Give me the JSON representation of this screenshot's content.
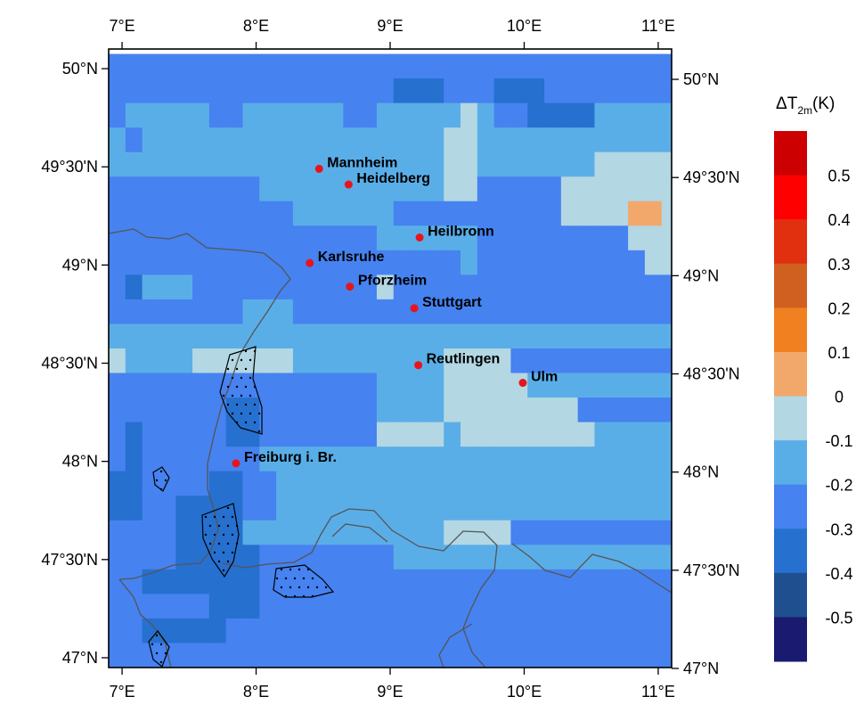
{
  "map": {
    "lon_range": [
      6.9,
      11.1
    ],
    "lat_range": [
      46.95,
      50.1
    ],
    "grid": {
      "lon_start": 6.9,
      "lat_start": 46.95,
      "cell_lon": 0.125,
      "cell_lat": 0.125,
      "cols": 34,
      "rows": 25
    },
    "bottom_ticks": [
      "7°E",
      "8°E",
      "9°E",
      "10°E",
      "11°E"
    ],
    "top_ticks": [
      "7°E",
      "8°E",
      "9°E",
      "10°E",
      "11°E"
    ],
    "bottom_tick_lons": [
      7,
      8,
      9,
      10,
      11
    ],
    "left_ticks": [
      "50°N",
      "49°30'N",
      "49°N",
      "48°30'N",
      "48°N",
      "47°30'N",
      "47°N"
    ],
    "right_ticks": [
      "50°N",
      "49°30'N",
      "49°N",
      "48°30'N",
      "48°N",
      "47°30'N",
      "47°N"
    ],
    "lat_tick_values": [
      50,
      49.5,
      49,
      48.5,
      48,
      47.5,
      47
    ],
    "cities": [
      {
        "name": "Mannheim",
        "lon": 8.47,
        "lat": 49.49
      },
      {
        "name": "Heidelberg",
        "lon": 8.69,
        "lat": 49.41
      },
      {
        "name": "Heilbronn",
        "lon": 9.22,
        "lat": 49.14
      },
      {
        "name": "Karlsruhe",
        "lon": 8.4,
        "lat": 49.01
      },
      {
        "name": "Pforzheim",
        "lon": 8.7,
        "lat": 48.89
      },
      {
        "name": "Stuttgart",
        "lon": 9.18,
        "lat": 48.78
      },
      {
        "name": "Reutlingen",
        "lon": 9.21,
        "lat": 48.49
      },
      {
        "name": "Ulm",
        "lon": 9.99,
        "lat": 48.4
      },
      {
        "name": "Freiburg i. Br.",
        "lon": 7.85,
        "lat": 47.99
      }
    ]
  },
  "colorbar": {
    "title_main": "ΔT",
    "title_sub": "2m",
    "title_unit": "(K)",
    "levels": [
      "0.5",
      "0.4",
      "0.3",
      "0.2",
      "0.1",
      "0",
      "-0.1",
      "-0.2",
      "-0.3",
      "-0.4",
      "-0.5"
    ],
    "colors": [
      "#cc0000",
      "#ff0000",
      "#e03010",
      "#d0601f",
      "#f08020",
      "#f2a86a",
      "#b3d7e3",
      "#5aaee8",
      "#4682f0",
      "#2670d0",
      "#1f4f8f",
      "#1a1a70"
    ]
  },
  "class_colors": {
    "A": "#f2a86a",
    "C": "#b3d7e3",
    "L": "#5aaee8",
    "M": "#4682f0",
    "D": "#2670d0",
    "V": "#1f4f8f"
  },
  "grid_rows": [
    "MMMMMMMMMMMMMMMMMMMMMMMMMMMMMMMMMM",
    "MMMMMMMMMMMMMMMMMDDDMMMDDDMMMMMMMM",
    "MLLLLLMMLLLLLLMMLLLLLCLMMDDDDLLLLL",
    "LMLLLLLLLLLLLLLLLLLLCCLLLLLLLLLLLL",
    "LLLLLLLLLLLLLLLLLLLLCCLLLLLLLCCCCC",
    "MMMMMMMMMLLLLLLLLLLLCCMMMMMCCCCCCC",
    "MMMMMMMMMMMLLLLLLMMMMMMMMMMCCCCAAC",
    "MMMMMMMMMMMMMMMMLLLLLLMMMMMMMMMCCC",
    "MMMMMMMMMMMMMMMMMMMMMLMMMMMMMMMMCC",
    "MDLLLMMMMMMMMMMMCMMMMMMMMMMMMMMMMM",
    "MMMMMMMMLLLMMMMMMMMMMMMMMMMMMMMMMM",
    "LLLLLLLLLLLLLLLLLLLLLLLLLLLLLLLLLL",
    "CLLLLCCCCCCLLLLLLLLLCCCCMMMMMMMMMM",
    "MMMMMMMMMMMMMMMMLLLLCCCCCLLLLLLLLL",
    "MMMMMMMDDMMMMMMMLLLLCCCCCCCCMMMMMM",
    "MDMMMMMDDMMMMMMMCCCCLCCCCCCCCLLLLL",
    "MDMMMMMMMLLLLLLLLLLLLLLLLLLLLLLLLL",
    "DDMMMMDDMMLLLLLLLLLLLLLLLLLLLLLLLL",
    "DDMMDDDDMMLLLLLLLLLLLLLLLLLLLLLLLL",
    "MMMMDDDDLLLLLLLLLLLLCCCCMMMMMMMMMM",
    "MMMMDDDDDMMMMMMMMLLLLLLLLLLLLLLLLL",
    "MMDDDDDDDMMMMMMMMMMMMMMMMMMMMMMMMM",
    "MMMMMMDDDMMMMMMMMMMMMMMMMMMMMMMMMM",
    "MMDDDDDMMMMMMMMMMMMMMMMMMMMMMMMMMM",
    "MMMMMMMMMMMMMMMMMMMMMMMMMMMMMMMMMM"
  ]
}
